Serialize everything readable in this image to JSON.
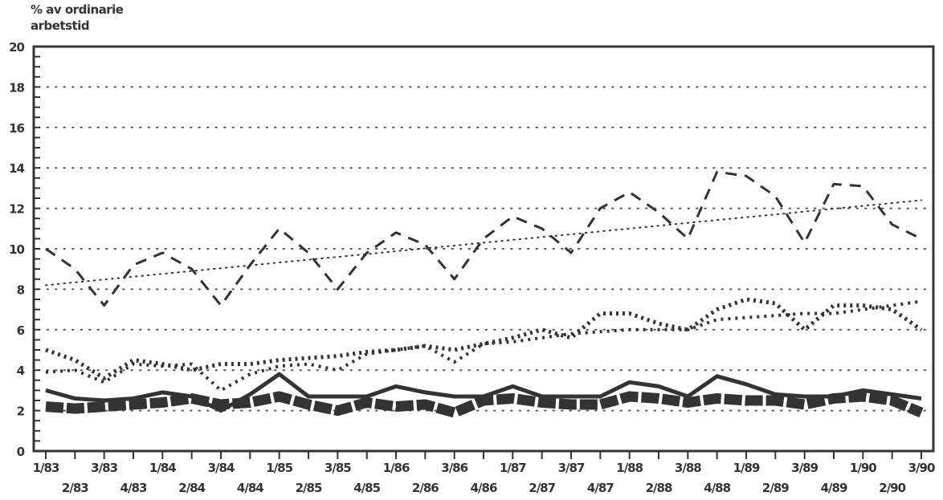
{
  "chart_data": {
    "type": "line",
    "title": "",
    "ylabel": "% av ordinarie arbetstid",
    "xlabel": "",
    "ylim": [
      0,
      20
    ],
    "yticks": [
      0,
      2,
      4,
      6,
      8,
      10,
      12,
      14,
      16,
      18,
      20
    ],
    "grid": true,
    "categories": [
      "1/83",
      "2/83",
      "3/83",
      "4/83",
      "1/84",
      "2/84",
      "3/84",
      "4/84",
      "1/85",
      "2/85",
      "3/85",
      "4/85",
      "1/86",
      "2/86",
      "3/86",
      "4/86",
      "1/87",
      "2/87",
      "3/87",
      "4/87",
      "1/88",
      "2/88",
      "3/88",
      "4/88",
      "1/89",
      "2/89",
      "3/89",
      "4/89",
      "1/90",
      "2/90",
      "3/90"
    ],
    "series": [
      {
        "style": "dashed",
        "values": [
          10.0,
          9.0,
          7.2,
          9.2,
          9.8,
          9.0,
          7.2,
          9.2,
          11.0,
          9.8,
          8.0,
          9.8,
          10.8,
          10.2,
          8.5,
          10.5,
          11.6,
          11.0,
          9.8,
          12.0,
          12.8,
          11.8,
          10.5,
          13.8,
          13.6,
          12.6,
          10.3,
          13.2,
          13.1,
          11.2,
          10.5
        ]
      },
      {
        "style": "fine-dotted-trend",
        "values": [
          8.2,
          8.34,
          8.48,
          8.62,
          8.76,
          8.9,
          9.04,
          9.18,
          9.32,
          9.46,
          9.6,
          9.74,
          9.88,
          10.02,
          10.16,
          10.3,
          10.44,
          10.58,
          10.72,
          10.86,
          11.0,
          11.14,
          11.28,
          11.42,
          11.56,
          11.7,
          11.84,
          11.98,
          12.12,
          12.26,
          12.4
        ]
      },
      {
        "style": "heavy-dotted",
        "values": [
          5.0,
          4.5,
          3.6,
          4.5,
          4.3,
          4.0,
          4.3,
          4.3,
          4.5,
          4.6,
          4.7,
          4.9,
          5.0,
          5.2,
          5.0,
          5.3,
          5.6,
          6.0,
          5.6,
          6.8,
          6.8,
          6.3,
          6.0,
          7.0,
          7.5,
          7.3,
          6.0,
          7.2,
          7.2,
          7.0,
          6.0
        ]
      },
      {
        "style": "dotted",
        "values": [
          3.9,
          4.0,
          3.4,
          4.3,
          4.2,
          4.3,
          3.0,
          3.8,
          4.2,
          4.3,
          4.0,
          4.8,
          5.0,
          5.2,
          4.4,
          5.3,
          5.4,
          5.6,
          5.8,
          5.9,
          6.0,
          6.0,
          6.0,
          6.5,
          6.6,
          6.7,
          6.8,
          6.8,
          7.0,
          7.2,
          7.4
        ]
      },
      {
        "style": "solid",
        "values": [
          3.0,
          2.6,
          2.5,
          2.6,
          2.9,
          2.7,
          2.0,
          2.8,
          3.8,
          2.7,
          2.7,
          2.7,
          3.2,
          2.9,
          2.7,
          2.7,
          3.2,
          2.7,
          2.7,
          2.7,
          3.4,
          3.2,
          2.7,
          3.7,
          3.3,
          2.8,
          2.7,
          2.7,
          3.0,
          2.8,
          2.6
        ]
      },
      {
        "style": "thick-comb",
        "values": [
          2.2,
          2.1,
          2.2,
          2.3,
          2.4,
          2.6,
          2.3,
          2.4,
          2.7,
          2.3,
          2.0,
          2.4,
          2.2,
          2.3,
          1.9,
          2.5,
          2.6,
          2.4,
          2.3,
          2.3,
          2.7,
          2.6,
          2.4,
          2.6,
          2.5,
          2.5,
          2.3,
          2.6,
          2.7,
          2.5,
          1.9
        ]
      }
    ],
    "colors": {
      "ink": "#333333",
      "grid": "#555555"
    }
  }
}
